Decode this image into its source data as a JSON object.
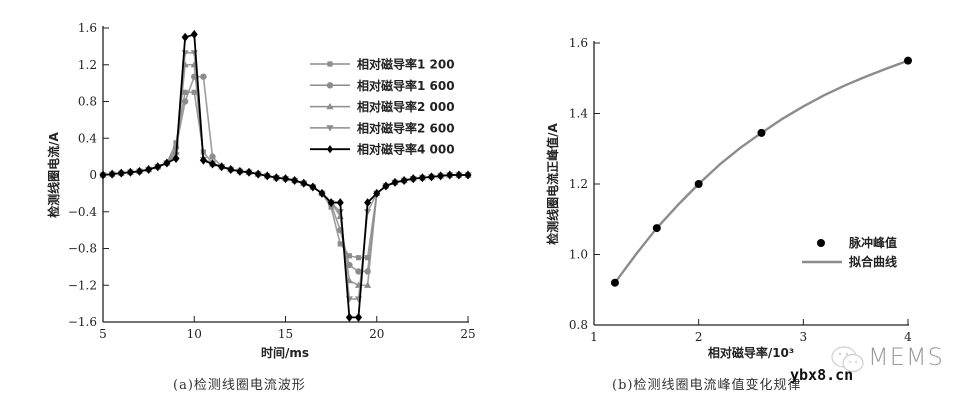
{
  "chart_data": [
    {
      "id": "a",
      "type": "line",
      "caption": "(a)检测线圈电流波形",
      "xlabel": "时间/ms",
      "ylabel": "检测线圈电流/A",
      "xlim": [
        5,
        25
      ],
      "ylim": [
        -1.6,
        1.6
      ],
      "xticks": [
        "5",
        "10",
        "15",
        "20",
        "25"
      ],
      "yticks": [
        "1.6",
        "1.2",
        "0.8",
        "0.4",
        "0",
        "-0.4",
        "-0.8",
        "-1.2",
        "-1.6"
      ],
      "grid": false,
      "legend_position": "upper right",
      "x": [
        5,
        5.5,
        6,
        6.5,
        7,
        7.5,
        8,
        8.5,
        9,
        9.5,
        10,
        10.5,
        11,
        11.5,
        12,
        12.5,
        13,
        13.5,
        14,
        14.5,
        15,
        15.5,
        16,
        16.5,
        17,
        17.5,
        18,
        18.5,
        19,
        19.5,
        20,
        20.5,
        21,
        21.5,
        22,
        22.5,
        23,
        23.5,
        24,
        24.5,
        25
      ],
      "series": [
        {
          "name": "相对磁导率1 200",
          "marker": "square",
          "color": "#8c8c8c",
          "values": [
            0,
            0.01,
            0.02,
            0.03,
            0.04,
            0.06,
            0.09,
            0.13,
            0.35,
            0.9,
            0.9,
            0.25,
            0.13,
            0.09,
            0.06,
            0.04,
            0.03,
            0.01,
            -0.01,
            -0.03,
            -0.04,
            -0.06,
            -0.09,
            -0.13,
            -0.2,
            -0.35,
            -0.75,
            -0.88,
            -0.9,
            -0.9,
            -0.2,
            -0.12,
            -0.08,
            -0.06,
            -0.04,
            -0.03,
            -0.02,
            -0.01,
            0,
            0,
            0
          ]
        },
        {
          "name": "相对磁导率1 600",
          "marker": "circle",
          "color": "#8c8c8c",
          "values": [
            0,
            0.01,
            0.02,
            0.03,
            0.04,
            0.06,
            0.09,
            0.13,
            0.3,
            0.8,
            1.07,
            1.07,
            0.2,
            0.09,
            0.06,
            0.04,
            0.03,
            0.01,
            -0.01,
            -0.03,
            -0.04,
            -0.06,
            -0.09,
            -0.13,
            -0.2,
            -0.32,
            -0.6,
            -0.98,
            -1.05,
            -1.05,
            -0.2,
            -0.12,
            -0.08,
            -0.06,
            -0.04,
            -0.03,
            -0.02,
            -0.01,
            0,
            0,
            0
          ]
        },
        {
          "name": "相对磁导率2 000",
          "marker": "triangle-up",
          "color": "#8c8c8c",
          "values": [
            0,
            0.01,
            0.02,
            0.03,
            0.04,
            0.06,
            0.09,
            0.13,
            0.25,
            1.2,
            1.2,
            0.18,
            0.12,
            0.09,
            0.06,
            0.04,
            0.03,
            0.01,
            -0.01,
            -0.03,
            -0.04,
            -0.06,
            -0.09,
            -0.13,
            -0.2,
            -0.3,
            -0.45,
            -1.15,
            -1.2,
            -1.2,
            -0.2,
            -0.12,
            -0.08,
            -0.06,
            -0.04,
            -0.03,
            -0.02,
            -0.01,
            0,
            0,
            0
          ]
        },
        {
          "name": "相对磁导率2 600",
          "marker": "triangle-down",
          "color": "#8c8c8c",
          "values": [
            0,
            0.01,
            0.02,
            0.03,
            0.04,
            0.06,
            0.09,
            0.13,
            0.22,
            1.33,
            1.33,
            0.17,
            0.12,
            0.09,
            0.06,
            0.04,
            0.03,
            0.01,
            -0.01,
            -0.03,
            -0.04,
            -0.06,
            -0.09,
            -0.13,
            -0.2,
            -0.3,
            -0.4,
            -1.35,
            -1.35,
            -0.4,
            -0.2,
            -0.12,
            -0.08,
            -0.06,
            -0.04,
            -0.03,
            -0.02,
            -0.01,
            0,
            0,
            0
          ]
        },
        {
          "name": "相对磁导率4 000",
          "marker": "diamond",
          "color": "#000000",
          "values": [
            0,
            0.01,
            0.02,
            0.03,
            0.04,
            0.06,
            0.09,
            0.13,
            0.18,
            1.5,
            1.53,
            0.16,
            0.12,
            0.09,
            0.06,
            0.04,
            0.03,
            0.01,
            -0.01,
            -0.03,
            -0.04,
            -0.06,
            -0.09,
            -0.13,
            -0.2,
            -0.3,
            -0.3,
            -1.55,
            -1.55,
            -0.3,
            -0.2,
            -0.12,
            -0.08,
            -0.06,
            -0.04,
            -0.03,
            -0.02,
            -0.01,
            0,
            0,
            0
          ]
        }
      ]
    },
    {
      "id": "b",
      "type": "scatter",
      "caption": "(b)检测线圈电流峰值变化规律",
      "xlabel": "相对磁导率/10³",
      "ylabel": "检测线圈电流正峰值/A",
      "xlim": [
        1,
        4
      ],
      "ylim": [
        0.8,
        1.6
      ],
      "xticks": [
        "1",
        "2",
        "3",
        "4"
      ],
      "yticks": [
        "1.6",
        "1.4",
        "1.2",
        "1.0",
        "0.8"
      ],
      "grid": false,
      "legend_position": "lower right",
      "series": [
        {
          "name": "脉冲峰值",
          "kind": "scatter",
          "color": "#000000",
          "x": [
            1.2,
            1.6,
            2.0,
            2.6,
            4.0
          ],
          "y": [
            0.92,
            1.075,
            1.2,
            1.345,
            1.55
          ]
        },
        {
          "name": "拟合曲线",
          "kind": "line",
          "color": "#8c8c8c",
          "x": [
            1.2,
            1.4,
            1.6,
            1.8,
            2.0,
            2.2,
            2.4,
            2.6,
            2.8,
            3.0,
            3.2,
            3.4,
            3.6,
            3.8,
            4.0
          ],
          "y": [
            0.92,
            1.0,
            1.075,
            1.14,
            1.2,
            1.255,
            1.303,
            1.345,
            1.385,
            1.42,
            1.452,
            1.48,
            1.505,
            1.528,
            1.55
          ]
        }
      ]
    }
  ],
  "watermark": {
    "brand": "MEMS",
    "site": "ybx8.cn"
  }
}
